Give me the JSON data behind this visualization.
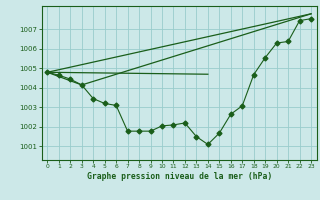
{
  "title": "Graphe pression niveau de la mer (hPa)",
  "background_color": "#cce8e8",
  "grid_color": "#99cccc",
  "line_color": "#1a5e1a",
  "xlim": [
    -0.5,
    23.5
  ],
  "ylim": [
    1000.3,
    1008.2
  ],
  "yticks": [
    1001,
    1002,
    1003,
    1004,
    1005,
    1006,
    1007
  ],
  "xticks": [
    0,
    1,
    2,
    3,
    4,
    5,
    6,
    7,
    8,
    9,
    10,
    11,
    12,
    13,
    14,
    15,
    16,
    17,
    18,
    19,
    20,
    21,
    22,
    23
  ],
  "series_main": {
    "x": [
      0,
      1,
      2,
      3,
      4,
      5,
      6,
      7,
      8,
      9,
      10,
      11,
      12,
      13,
      14,
      15,
      16,
      17,
      18,
      19,
      20,
      21,
      22,
      23
    ],
    "y": [
      1004.8,
      1004.65,
      1004.45,
      1004.15,
      1003.45,
      1003.2,
      1003.1,
      1001.78,
      1001.78,
      1001.78,
      1002.05,
      1002.1,
      1002.2,
      1001.5,
      1001.1,
      1001.68,
      1002.65,
      1003.08,
      1004.68,
      1005.55,
      1006.3,
      1006.38,
      1007.45,
      1007.55
    ]
  },
  "series_flat": {
    "x": [
      0,
      14
    ],
    "y": [
      1004.8,
      1004.7
    ]
  },
  "series_diagonal": {
    "x": [
      0,
      23
    ],
    "y": [
      1004.8,
      1007.8
    ]
  },
  "series_bent": {
    "x": [
      0,
      3,
      23
    ],
    "y": [
      1004.8,
      1004.15,
      1007.8
    ]
  }
}
